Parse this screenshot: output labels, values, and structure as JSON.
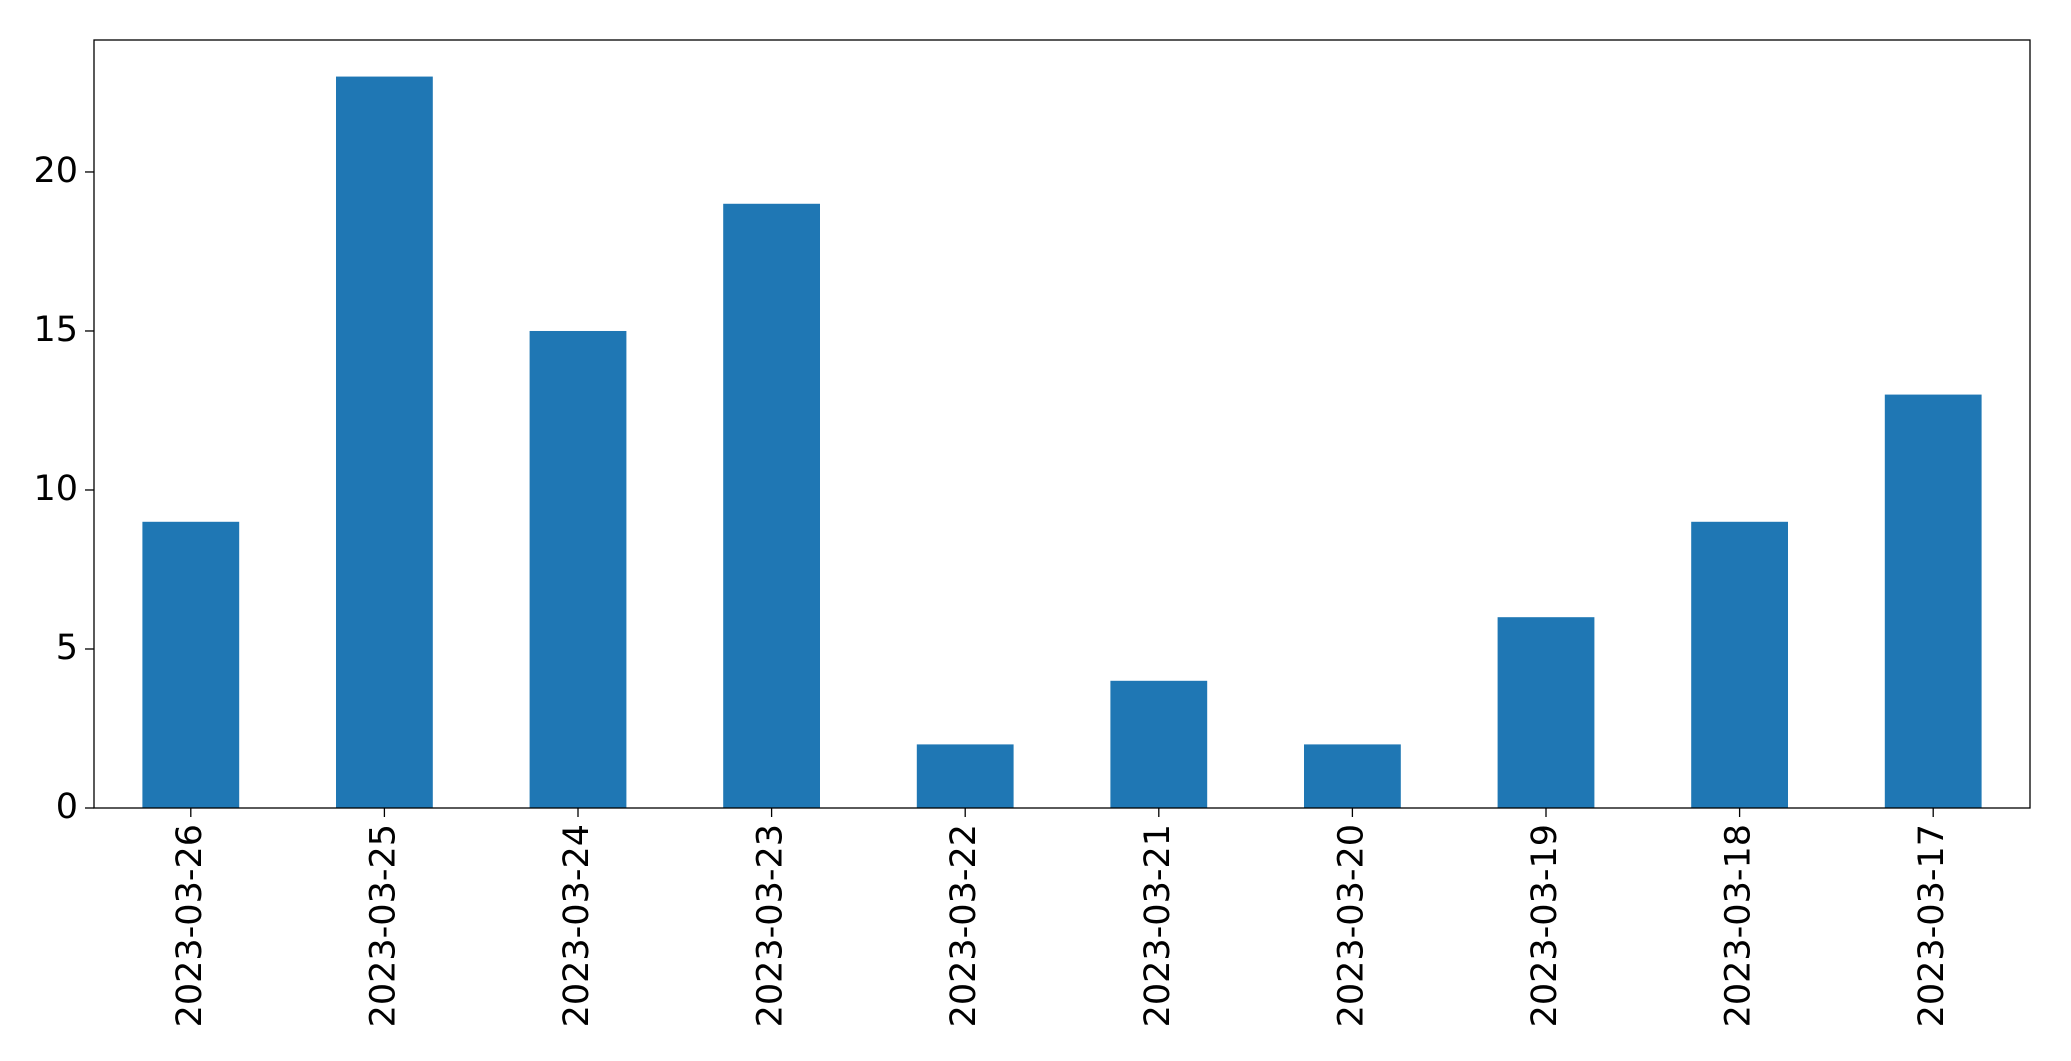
{
  "chart_data": {
    "type": "bar",
    "categories": [
      "2023-03-26",
      "2023-03-25",
      "2023-03-24",
      "2023-03-23",
      "2023-03-22",
      "2023-03-21",
      "2023-03-20",
      "2023-03-19",
      "2023-03-18",
      "2023-03-17"
    ],
    "values": [
      9,
      23,
      15,
      19,
      2,
      4,
      2,
      6,
      9,
      13
    ],
    "color": "#1f77b4",
    "ylim": [
      0,
      24.15
    ],
    "yticks": [
      0,
      5,
      10,
      15,
      20
    ],
    "grid": false
  }
}
